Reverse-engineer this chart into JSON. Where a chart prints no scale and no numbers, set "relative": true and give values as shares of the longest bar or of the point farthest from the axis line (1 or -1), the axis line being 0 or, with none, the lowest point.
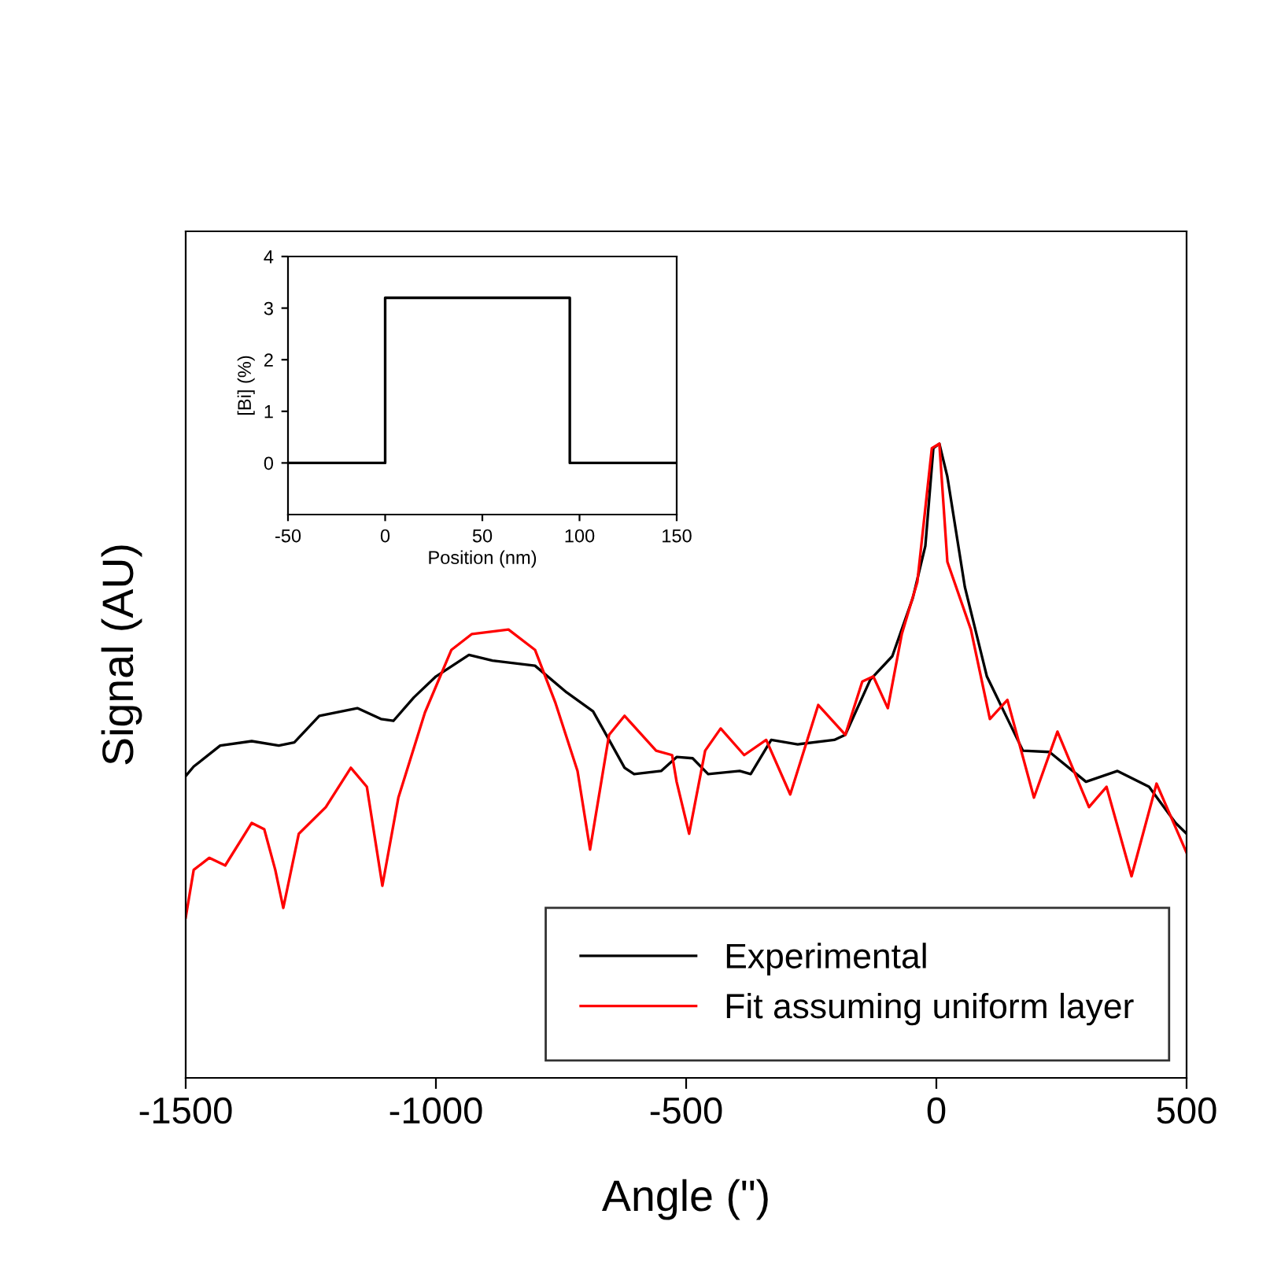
{
  "chart_data": [
    {
      "type": "line",
      "xlabel": "Angle (\")",
      "ylabel": "Signal (AU)",
      "relative": true,
      "xlim": [
        -1500,
        500
      ],
      "xticks": [
        -1500,
        -1000,
        -500,
        0,
        500
      ],
      "legend": "bottom right",
      "grid": false,
      "series": [
        {
          "name": "Experimental",
          "color": "#000000",
          "x": [
            -1500,
            -1484,
            -1431,
            -1368,
            -1314,
            -1283,
            -1233,
            -1157,
            -1110,
            -1085,
            -1044,
            -1000,
            -934,
            -887,
            -802,
            -739,
            -686,
            -654,
            -623,
            -604,
            -550,
            -519,
            -487,
            -456,
            -393,
            -371,
            -330,
            -277,
            -204,
            -182,
            -132,
            -88,
            -47,
            -22,
            -6,
            6,
            22,
            57,
            101,
            173,
            226,
            299,
            362,
            425,
            478,
            500
          ],
          "values": [
            0.476,
            0.491,
            0.524,
            0.531,
            0.524,
            0.529,
            0.571,
            0.583,
            0.566,
            0.563,
            0.6,
            0.633,
            0.667,
            0.658,
            0.65,
            0.608,
            0.578,
            0.533,
            0.489,
            0.479,
            0.484,
            0.506,
            0.504,
            0.479,
            0.484,
            0.479,
            0.533,
            0.526,
            0.533,
            0.541,
            0.628,
            0.665,
            0.757,
            0.839,
            0.993,
            1.0,
            0.948,
            0.774,
            0.633,
            0.516,
            0.514,
            0.467,
            0.484,
            0.459,
            0.402,
            0.385
          ]
        },
        {
          "name": "Fit assuming uniform layer",
          "color": "#ff0000",
          "x": [
            -1500,
            -1484,
            -1453,
            -1421,
            -1368,
            -1343,
            -1321,
            -1305,
            -1274,
            -1220,
            -1170,
            -1138,
            -1107,
            -1075,
            -1022,
            -969,
            -928,
            -855,
            -802,
            -761,
            -717,
            -692,
            -654,
            -623,
            -560,
            -528,
            -519,
            -494,
            -462,
            -431,
            -384,
            -340,
            -292,
            -236,
            -182,
            -148,
            -126,
            -97,
            -69,
            -38,
            -9,
            6,
            22,
            69,
            107,
            142,
            195,
            242,
            305,
            340,
            390,
            440,
            500
          ],
          "values": [
            0.253,
            0.328,
            0.347,
            0.335,
            0.402,
            0.392,
            0.328,
            0.268,
            0.385,
            0.427,
            0.489,
            0.459,
            0.303,
            0.442,
            0.576,
            0.675,
            0.7,
            0.707,
            0.675,
            0.591,
            0.484,
            0.36,
            0.541,
            0.571,
            0.516,
            0.509,
            0.467,
            0.385,
            0.516,
            0.551,
            0.509,
            0.533,
            0.447,
            0.588,
            0.541,
            0.625,
            0.633,
            0.583,
            0.7,
            0.782,
            0.993,
            1.0,
            0.814,
            0.707,
            0.566,
            0.596,
            0.442,
            0.546,
            0.427,
            0.459,
            0.318,
            0.464,
            0.355
          ]
        }
      ]
    },
    {
      "type": "line",
      "xlabel": "Position (nm)",
      "ylabel": "[Bi] (%)",
      "xlim": [
        -50,
        150
      ],
      "ylim": [
        -1,
        4
      ],
      "xticks": [
        -50,
        0,
        50,
        100,
        150
      ],
      "yticks": [
        0,
        1,
        2,
        3,
        4
      ],
      "grid": false,
      "legend": false,
      "series": [
        {
          "color": "#000000",
          "x": [
            -50,
            0,
            0,
            95,
            95,
            150
          ],
          "values": [
            0,
            0,
            3.2,
            3.2,
            0,
            0
          ]
        }
      ]
    }
  ]
}
